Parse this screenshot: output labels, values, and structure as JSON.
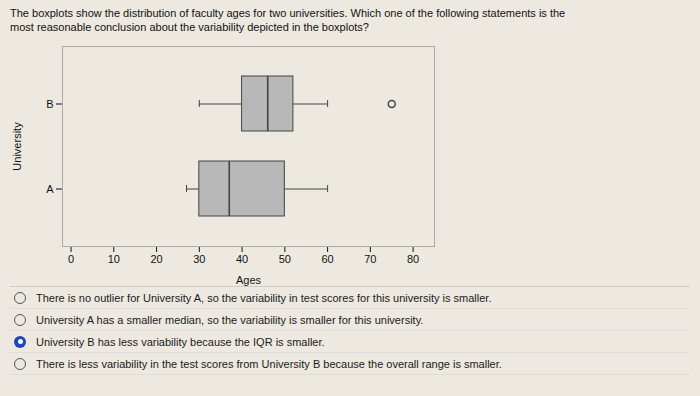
{
  "chart_data": {
    "type": "boxplot",
    "title": "The boxplots show the distribution of faculty ages for two universities. Which one of the following statements is the",
    "subtitle": "most reasonable conclusion about the variability depicted in the boxplots?",
    "xlabel": "Ages",
    "ylabel": "University",
    "categories": [
      "A",
      "B"
    ],
    "boxes": [
      {
        "whisker_low": 27,
        "q1": 30,
        "median": 37,
        "q3": 50,
        "whisker_high": 60
      },
      {
        "whisker_low": 30,
        "q1": 40,
        "median": 46,
        "q3": 52,
        "whisker_high": 60,
        "outliers": [
          75
        ]
      }
    ],
    "xlim": [
      -2,
      85
    ],
    "xticks": [
      0,
      10,
      20,
      30,
      40,
      50,
      60,
      70,
      80
    ],
    "grid": false,
    "color": "#b8b8b8",
    "annotations": [
      {
        "text": "There is no outlier for University A, so the variability in test scores for this university is smaller.",
        "selected": false
      },
      {
        "text": "University A has a smaller median, so the variability is smaller for this university.",
        "selected": false
      },
      {
        "text": "University B has less variability because the IQR is smaller.",
        "selected": true
      },
      {
        "text": "There is less variability in the test scores from University B because the overall range is smaller.",
        "selected": false
      }
    ]
  }
}
